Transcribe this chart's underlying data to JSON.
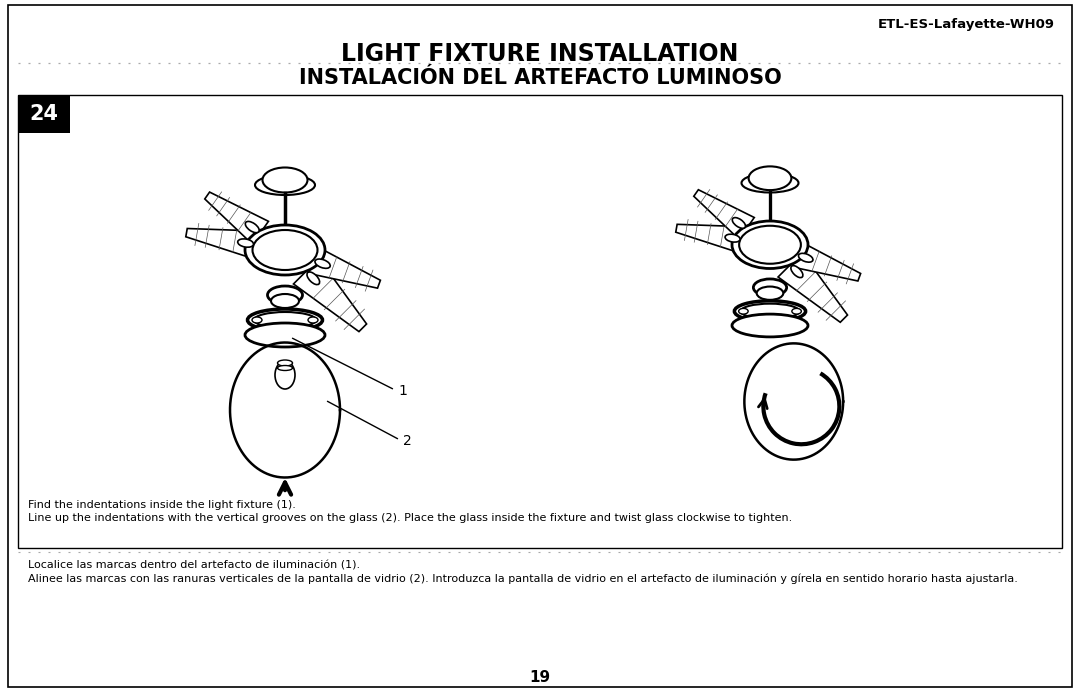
{
  "bg_color": "#ffffff",
  "title_en": "LIGHT FIXTURE INSTALLATION",
  "title_es": "INSTALACIÓN DEL ARTEFACTO LUMINOSO",
  "model_number": "ETL-ES-Lafayette-WH09",
  "step_number": "24",
  "page_number": "19",
  "caption_en_1": "Find the indentations inside the light fixture (1).",
  "caption_en_2": "Line up the indentations with the vertical grooves on the glass (2). Place the glass inside the fixture and twist glass clockwise to tighten.",
  "caption_es_1": "Localice las marcas dentro del artefacto de iluminación (1).",
  "caption_es_2": "Alinee las marcas con las ranuras verticales de la pantalla de vidrio (2). Introduzca la pantalla de vidrio en el artefacto de iluminación y gírela en sentido horario hasta ajustarla.",
  "label_1": "1",
  "label_2": "2",
  "fig_width": 10.8,
  "fig_height": 6.98,
  "dpi": 100
}
